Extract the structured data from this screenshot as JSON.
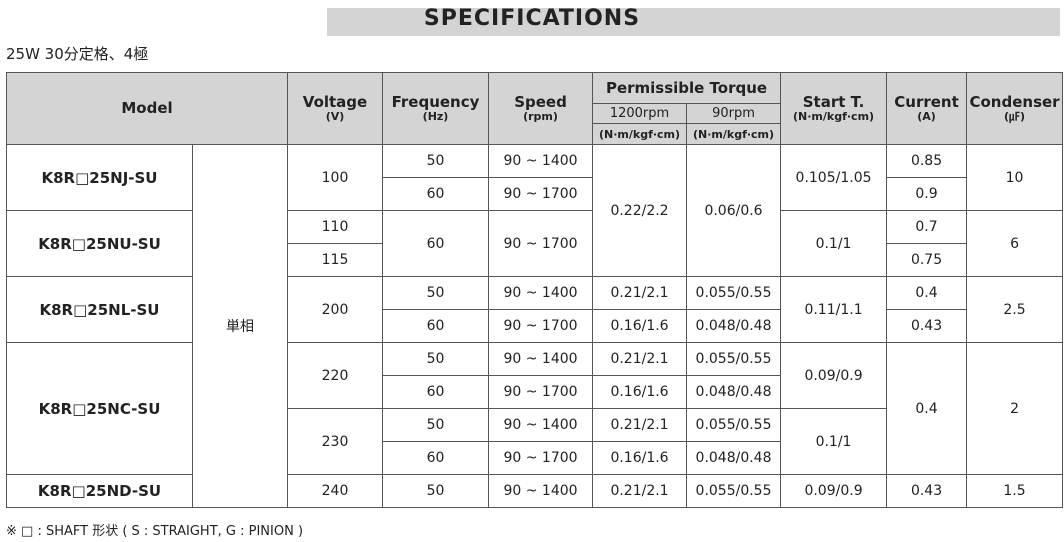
{
  "header": {
    "title": "SPECIFICATIONS",
    "subtitle": "25W 30分定格、4極"
  },
  "table": {
    "columns": {
      "model": "Model",
      "voltage": "Voltage",
      "voltage_unit": "(V)",
      "frequency": "Frequency",
      "frequency_unit": "(Hz)",
      "speed": "Speed",
      "speed_unit": "(rpm)",
      "torque": "Permissible Torque",
      "torque_1200": "1200rpm",
      "torque_90": "90rpm",
      "torque_1200_unit": "(N·m/kgf·cm)",
      "torque_90_unit": "(N·m/kgf·cm)",
      "start": "Start T.",
      "start_unit": "(N·m/kgf·cm)",
      "current": "Current",
      "current_unit": "(A)",
      "condenser": "Condenser",
      "condenser_unit": "(㎌)"
    },
    "rows": [
      [
        "K8R□25NJ-SU",
        "単相",
        "100",
        "50",
        "90 ~ 1400",
        "0.22/2.2",
        "0.06/0.6",
        "0.105/1.05",
        "0.85",
        "10"
      ],
      [
        "60",
        "90 ~ 1700",
        "0.9"
      ],
      [
        "K8R□25NU-SU",
        "110",
        "60",
        "90 ~ 1700",
        "0.1/1",
        "0.7",
        "6"
      ],
      [
        "115",
        "0.75"
      ],
      [
        "K8R□25NL-SU",
        "200",
        "50",
        "90 ~ 1400",
        "0.21/2.1",
        "0.055/0.55",
        "0.11/1.1",
        "0.4",
        "2.5"
      ],
      [
        "60",
        "90 ~ 1700",
        "0.16/1.6",
        "0.048/0.48",
        "0.43"
      ],
      [
        "K8R□25NC-SU",
        "220",
        "50",
        "90 ~ 1400",
        "0.21/2.1",
        "0.055/0.55",
        "0.09/0.9",
        "0.4",
        "2"
      ],
      [
        "60",
        "90 ~ 1700",
        "0.16/1.6",
        "0.048/0.48"
      ],
      [
        "230",
        "50",
        "90 ~ 1400",
        "0.21/2.1",
        "0.055/0.55",
        "0.1/1"
      ],
      [
        "60",
        "90 ~ 1700",
        "0.16/1.6",
        "0.048/0.48"
      ],
      [
        "K8R□25ND-SU",
        "240",
        "50",
        "90 ~ 1400",
        "0.21/2.1",
        "0.055/0.55",
        "0.09/0.9",
        "0.43",
        "1.5"
      ]
    ]
  },
  "footnote": "※ □ : SHAFT 形状 ( S : STRAIGHT, G : PINION )"
}
